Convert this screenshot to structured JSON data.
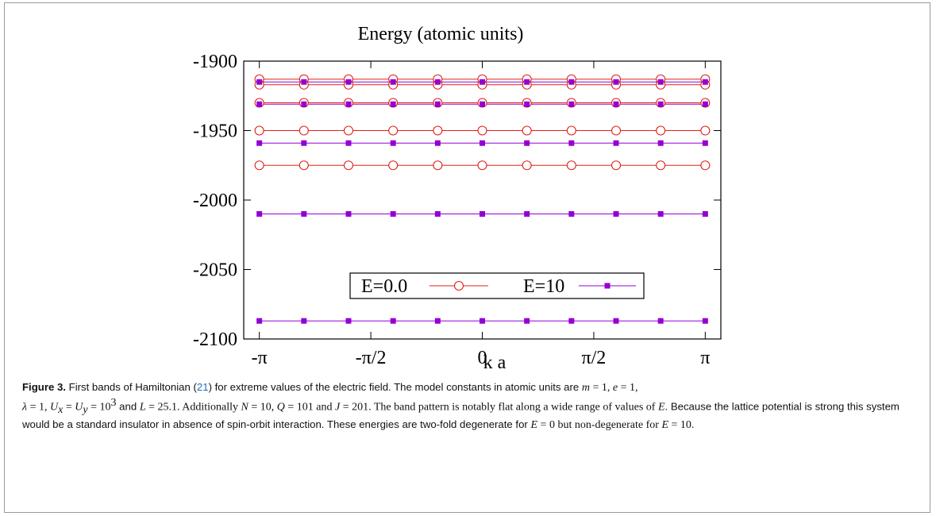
{
  "chart_data": {
    "type": "line",
    "title": "Energy  (atomic units)",
    "xlabel": "k a",
    "ylabel": "",
    "xlim": [
      -3.14159265,
      3.14159265
    ],
    "ylim": [
      -2100,
      -1900
    ],
    "x_ticks": [
      {
        "value": -3.14159265,
        "label": "-π"
      },
      {
        "value": -1.57079633,
        "label": "-π/2"
      },
      {
        "value": 0,
        "label": "0"
      },
      {
        "value": 1.57079633,
        "label": "π/2"
      },
      {
        "value": 3.14159265,
        "label": "π"
      }
    ],
    "y_ticks": [
      {
        "value": -1900,
        "label": "-1900"
      },
      {
        "value": -1950,
        "label": "-1950"
      },
      {
        "value": -2000,
        "label": "-2000"
      },
      {
        "value": -2050,
        "label": "-2050"
      },
      {
        "value": -2100,
        "label": "-2100"
      }
    ],
    "x": [
      -3.14159265,
      -2.51327412,
      -1.88495559,
      -1.25663706,
      -0.62831853,
      0,
      0.62831853,
      1.25663706,
      1.88495559,
      2.51327412,
      3.14159265
    ],
    "legend_position": "lower-center",
    "grid": false,
    "series": [
      {
        "name": "E=0.0",
        "marker": "open-circle",
        "color": "#e0201b",
        "levels": [
          -1913,
          -1917,
          -1930,
          -1950,
          -1975
        ]
      },
      {
        "name": "E=10",
        "marker": "filled-square",
        "color": "#9400d3",
        "levels": [
          -1915,
          -1931,
          -1959,
          -2010,
          -2087
        ]
      }
    ]
  },
  "caption": {
    "label": "Figure 3.",
    "seg1": " First bands of Hamiltonian (",
    "ref": "21",
    "seg2": ") for extreme values of the electric field. The model constants in atomic units are ",
    "m": "m",
    "eq1": " = 1, ",
    "e": "e",
    "eq2": " = 1,",
    "lambda": "λ",
    "eq3": " = 1, ",
    "Ux": "U",
    "x_sub": "x",
    "eq4": " = ",
    "Uy": "U",
    "y_sub": "y",
    "eq5": " = 10",
    "exp3": "3",
    "seg3": " and ",
    "L": "L",
    "eq6": " = 25.1. Additionally ",
    "N": "N",
    "eq7": " = 10, ",
    "Q": "Q",
    "eq8": " = 101 and ",
    "J": "J",
    "eq9": " = 201. The band pattern is notably flat along a wide range of values of ",
    "E1": "E",
    "seg4": ". Because the lattice potential is strong this system would be a standard insulator in absence of spin-orbit interaction. These energies are two-fold degenerate for ",
    "E2": "E",
    "eq10": " = 0 but non-degenerate for ",
    "E3": "E",
    "eq11": " = 10."
  }
}
